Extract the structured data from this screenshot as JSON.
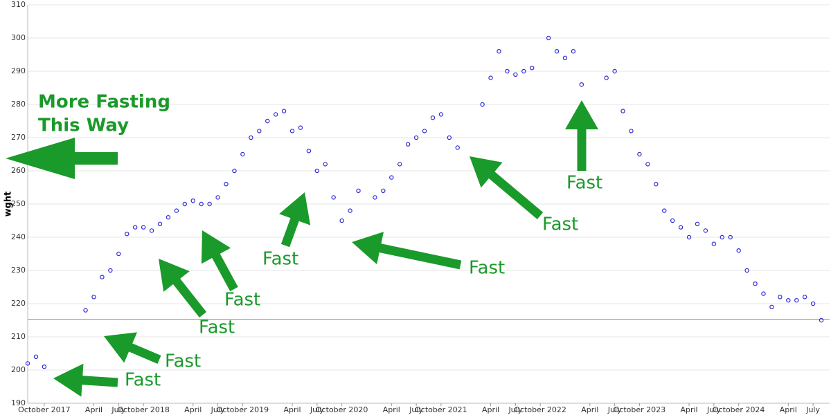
{
  "chart_data": {
    "type": "scatter",
    "y_label": "wght",
    "x": [
      "2017-08",
      "2017-09",
      "2017-10",
      "2018-03",
      "2018-04",
      "2018-05",
      "2018-06",
      "2018-07",
      "2018-08",
      "2018-09",
      "2018-10",
      "2018-11",
      "2018-12",
      "2019-01",
      "2019-02",
      "2019-03",
      "2019-04",
      "2019-05",
      "2019-06",
      "2019-07",
      "2019-08",
      "2019-09",
      "2019-10",
      "2019-11",
      "2019-12",
      "2020-01",
      "2020-02",
      "2020-03",
      "2020-04",
      "2020-05",
      "2020-06",
      "2020-07",
      "2020-08",
      "2020-09",
      "2020-10",
      "2020-11",
      "2020-12",
      "2021-02",
      "2021-03",
      "2021-04",
      "2021-05",
      "2021-06",
      "2021-07",
      "2021-08",
      "2021-09",
      "2021-10",
      "2021-11",
      "2021-12",
      "2022-03",
      "2022-04",
      "2022-05",
      "2022-06",
      "2022-07",
      "2022-08",
      "2022-09",
      "2022-11",
      "2022-12",
      "2023-01",
      "2023-02",
      "2023-03",
      "2023-06",
      "2023-07",
      "2023-08",
      "2023-09",
      "2023-10",
      "2023-11",
      "2023-12",
      "2024-01",
      "2024-02",
      "2024-03",
      "2024-04",
      "2024-05",
      "2024-06",
      "2024-07",
      "2024-08",
      "2024-09",
      "2024-10",
      "2024-11",
      "2024-12",
      "2025-01",
      "2025-02",
      "2025-03",
      "2025-04",
      "2025-05",
      "2025-06",
      "2025-07",
      "2025-08"
    ],
    "values": [
      202,
      204,
      201,
      218,
      222,
      228,
      230,
      235,
      241,
      243,
      243,
      242,
      244,
      246,
      248,
      250,
      251,
      250,
      250,
      252,
      256,
      260,
      265,
      270,
      272,
      275,
      277,
      278,
      272,
      273,
      266,
      260,
      262,
      252,
      245,
      248,
      254,
      252,
      254,
      258,
      262,
      268,
      270,
      272,
      276,
      277,
      270,
      267,
      280,
      288,
      296,
      290,
      289,
      290,
      291,
      300,
      296,
      294,
      296,
      286,
      288,
      290,
      278,
      272,
      265,
      262,
      256,
      248,
      245,
      243,
      240,
      244,
      242,
      238,
      240,
      240,
      236,
      230,
      226,
      223,
      219,
      222,
      221,
      221,
      222,
      220,
      215
    ],
    "color": "#2b2bd6",
    "xlim": [
      "2017-08",
      "2025-09"
    ],
    "xticks": [
      {
        "value": "2017-10",
        "label": "October 2017"
      },
      {
        "value": "2018-04",
        "label": "April"
      },
      {
        "value": "2018-07",
        "label": "July"
      },
      {
        "value": "2018-10",
        "label": "October 2018"
      },
      {
        "value": "2019-04",
        "label": "April"
      },
      {
        "value": "2019-07",
        "label": "July"
      },
      {
        "value": "2019-10",
        "label": "October 2019"
      },
      {
        "value": "2020-04",
        "label": "April"
      },
      {
        "value": "2020-07",
        "label": "July"
      },
      {
        "value": "2020-10",
        "label": "October 2020"
      },
      {
        "value": "2021-04",
        "label": "April"
      },
      {
        "value": "2021-07",
        "label": "July"
      },
      {
        "value": "2021-10",
        "label": "October 2021"
      },
      {
        "value": "2022-04",
        "label": "April"
      },
      {
        "value": "2022-07",
        "label": "July"
      },
      {
        "value": "2022-10",
        "label": "October 2022"
      },
      {
        "value": "2023-04",
        "label": "April"
      },
      {
        "value": "2023-07",
        "label": "July"
      },
      {
        "value": "2023-10",
        "label": "October 2023"
      },
      {
        "value": "2024-04",
        "label": "April"
      },
      {
        "value": "2024-07",
        "label": "July"
      },
      {
        "value": "2024-10",
        "label": "October 2024"
      },
      {
        "value": "2025-04",
        "label": "April"
      },
      {
        "value": "2025-07",
        "label": "July"
      }
    ],
    "ylim": [
      190,
      310
    ],
    "yticks": [
      190,
      200,
      210,
      220,
      230,
      240,
      250,
      260,
      270,
      280,
      290,
      300,
      310
    ],
    "grid": true,
    "reference_line": 215.3,
    "reference_color": "#e08080",
    "annotation_color": "#1a9a2a",
    "annotations": [
      "More Fasting",
      "This Way",
      "Fast",
      "Fast",
      "Fast",
      "Fast",
      "Fast",
      "Fast",
      "Fast",
      "Fast"
    ]
  }
}
